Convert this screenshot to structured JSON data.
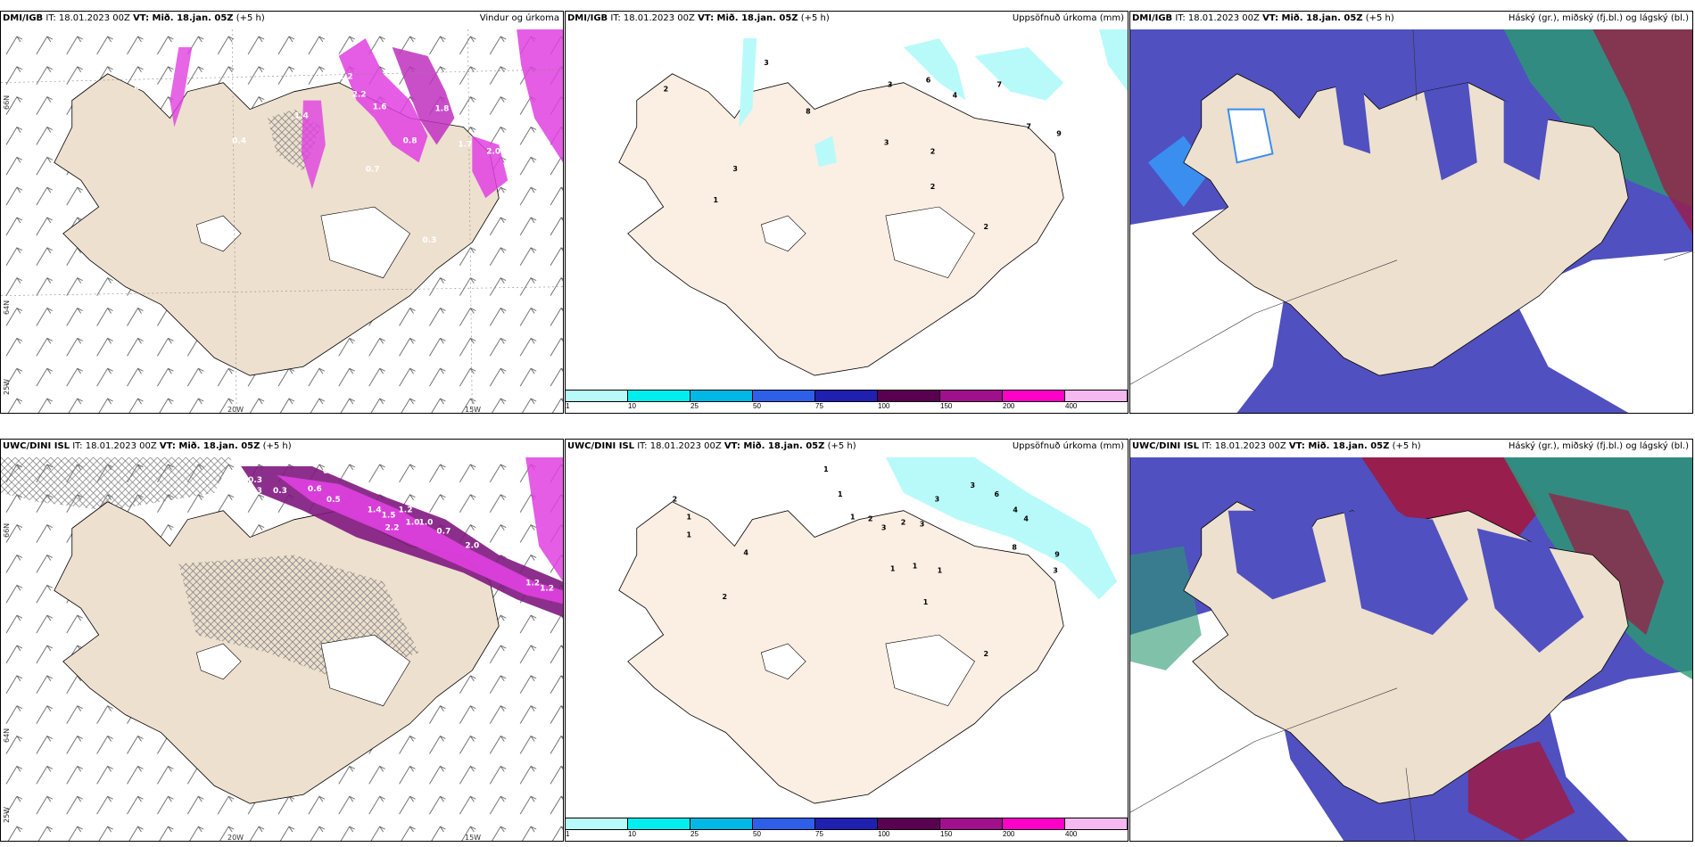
{
  "panels": [
    {
      "id": "top-wind",
      "model": "DMI/IGB",
      "it_label": " IT: 18.01.2023 00Z ",
      "vt_label": "VT: Mið. 18.jan. 05Z",
      "lead": " (+5 h)",
      "product": "Vindur og úrkoma",
      "lon_labels": [
        "20W",
        "15W"
      ],
      "lat_labels": [
        "66N",
        "64N",
        "25W"
      ],
      "values": [
        "0.7",
        "1.2",
        "1.6",
        "1.8",
        "2.0",
        "0.8",
        "0.4",
        "0.7",
        "0.3",
        "2.2",
        "1.4",
        "1.7"
      ]
    },
    {
      "id": "top-accum",
      "model": "DMI/IGB",
      "it_label": " IT: 18.01.2023 00Z ",
      "vt_label": "VT: Mið. 18.jan. 05Z",
      "lead": " (+5 h)",
      "product": "Uppsöfnuð úrkoma (mm)",
      "values": [
        "3",
        "2",
        "8",
        "3",
        "6",
        "4",
        "7",
        "7",
        "9",
        "3",
        "2",
        "2",
        "2",
        "1",
        "3"
      ]
    },
    {
      "id": "top-cloud",
      "model": "DMI/IGB",
      "it_label": " IT: 18.01.2023 00Z ",
      "vt_label": "VT: Mið. 18.jan. 05Z",
      "lead": " (+5 h)",
      "product": "Háský (gr.), miðský (fj.bl.) og lágský (bl.)"
    },
    {
      "id": "bottom-wind",
      "model": "UWC/DINI ISL",
      "it_label": " IT: 18.01.2023 00Z ",
      "vt_label": "VT: Mið. 18.jan. 05Z",
      "lead": " (+5 h)",
      "product": "",
      "lon_labels": [
        "20W",
        "15W"
      ],
      "lat_labels": [
        "66N",
        "64N",
        "25W"
      ],
      "values": [
        "0.3",
        "0.3",
        "0.3",
        "0.6",
        "0.6",
        "0.5",
        "1.4",
        "1.5",
        "2.2",
        "1.2",
        "1.0",
        "0.7",
        "1.0",
        "2.0",
        "1.2",
        "1.2",
        "0.4"
      ]
    },
    {
      "id": "bottom-accum",
      "model": "UWC/DINI ISL",
      "it_label": " IT: 18.01.2023 00Z ",
      "vt_label": "VT: Mið. 18.jan. 05Z",
      "lead": " (+5 h)",
      "product": "Uppsöfnuð úrkoma (mm)",
      "values": [
        "2",
        "1",
        "1",
        "4",
        "2",
        "1",
        "1",
        "1",
        "2",
        "3",
        "2",
        "3",
        "3",
        "6",
        "4",
        "3",
        "4",
        "8",
        "9",
        "3",
        "1",
        "1",
        "1",
        "1",
        "2"
      ]
    },
    {
      "id": "bottom-cloud",
      "model": "UWC/DINI ISL",
      "it_label": " IT: 18.01.2023 00Z ",
      "vt_label": "VT: Mið. 18.jan. 05Z",
      "lead": " (+5 h)",
      "product": "Háský (gr.), miðský (fj.bl.) og lágský (bl.)"
    }
  ],
  "colorbar": {
    "labels": [
      "1",
      "10",
      "25",
      "50",
      "75",
      "100",
      "150",
      "200",
      "400"
    ],
    "colors": [
      "#b8fafa",
      "#00eeee",
      "#00b8e6",
      "#2e5fe8",
      "#2020b0",
      "#5a0050",
      "#a0108c",
      "#ff00c8",
      "#f5b8f0"
    ]
  },
  "colors": {
    "land": "#ede0cf",
    "land_light": "#fbeee2",
    "precip_magenta": "#e040e0",
    "precip_dark": "#801880",
    "cloud_low": "#5050c0",
    "cloud_mid": "#3a8ef0",
    "cloud_high": "#2a9a70",
    "cloud_red": "#a01840"
  }
}
